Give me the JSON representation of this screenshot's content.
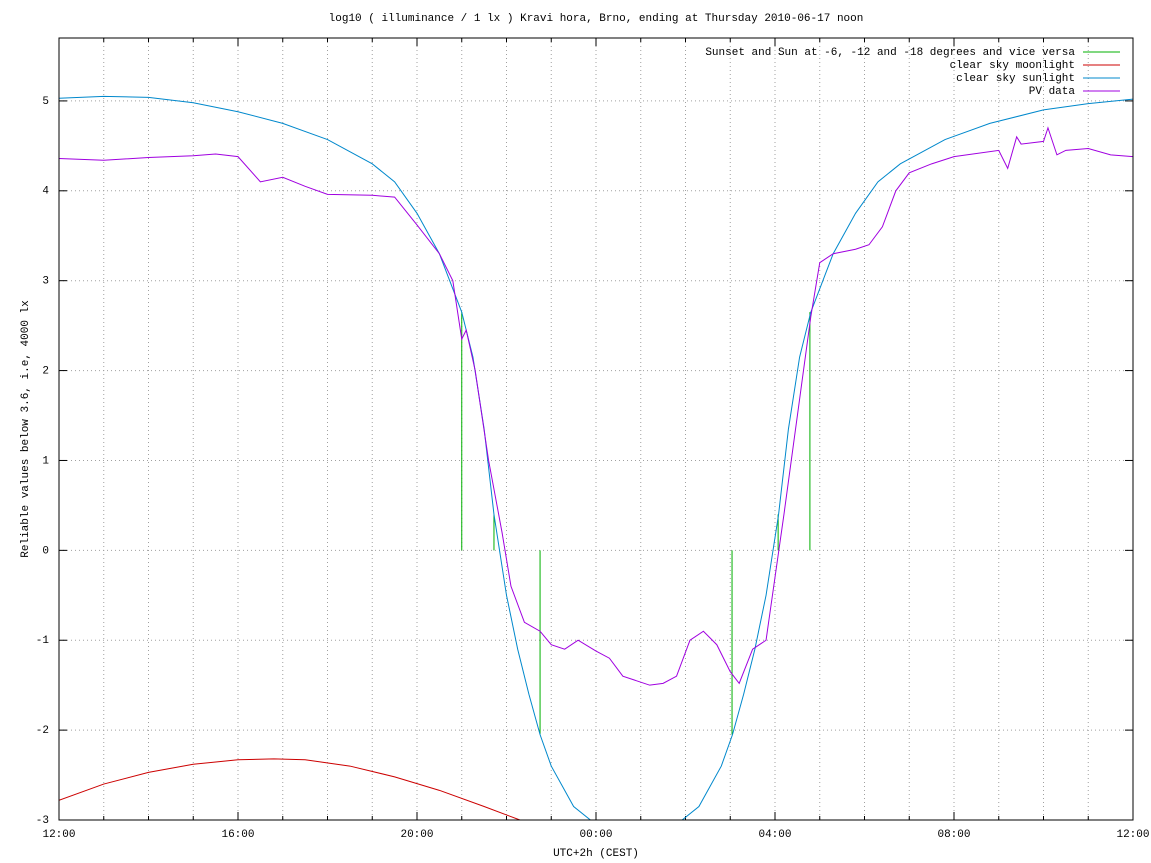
{
  "chart_data": {
    "type": "line",
    "title": "log10 ( illuminance / 1 lx ) Kravi hora, Brno, ending at Thursday 2010-06-17 noon",
    "xlabel": "UTC+2h (CEST)",
    "ylabel": "Reliable values below 3.6, i.e, 4000 lx",
    "xlim": [
      0,
      24
    ],
    "ylim": [
      -3,
      5.7
    ],
    "xticks": [
      {
        "value": 0,
        "label": "12:00"
      },
      {
        "value": 4,
        "label": "16:00"
      },
      {
        "value": 8,
        "label": "20:00"
      },
      {
        "value": 12,
        "label": "00:00"
      },
      {
        "value": 16,
        "label": "04:00"
      },
      {
        "value": 20,
        "label": "08:00"
      },
      {
        "value": 24,
        "label": "12:00"
      }
    ],
    "xminorticks": [
      1,
      2,
      3,
      5,
      6,
      7,
      9,
      10,
      11,
      13,
      14,
      15,
      17,
      18,
      19,
      21,
      22,
      23
    ],
    "yticks": [
      -3,
      -2,
      -1,
      0,
      1,
      2,
      3,
      4,
      5
    ],
    "grid": true,
    "legend": "top-right",
    "series": [
      {
        "name": "Sunset and Sun at -6, -12 and -18 degrees and vice versa",
        "color": "#00b000",
        "x": [
          9.0,
          9.0,
          9.0,
          9.72,
          9.72,
          9.72,
          10.75,
          10.75,
          10.75,
          15.04,
          15.04,
          15.04,
          16.07,
          16.07,
          16.07,
          16.78,
          16.78
        ],
        "values": [
          0,
          2.65,
          null,
          0,
          0.4,
          null,
          0,
          -2.05,
          null,
          0,
          -2.05,
          null,
          0,
          0.4,
          null,
          0,
          2.65
        ]
      },
      {
        "name": "clear sky moonlight",
        "color": "#cc0000",
        "x": [
          0,
          1,
          2,
          3,
          4,
          4.8,
          5.5,
          6.5,
          7.5,
          8.5,
          9.5,
          10.3
        ],
        "values": [
          -2.78,
          -2.6,
          -2.47,
          -2.38,
          -2.33,
          -2.32,
          -2.33,
          -2.4,
          -2.52,
          -2.67,
          -2.85,
          -3.0
        ]
      },
      {
        "name": "clear sky sunlight",
        "color": "#0088cc",
        "x": [
          0,
          1,
          2,
          3,
          4,
          5,
          6,
          7,
          7.5,
          8,
          8.5,
          9,
          9.25,
          9.5,
          9.72,
          10,
          10.25,
          10.5,
          10.75,
          11,
          11.5,
          12,
          12.9,
          13.8,
          14.3,
          14.8,
          15.05,
          15.3,
          15.55,
          15.8,
          16.08,
          16.3,
          16.55,
          16.8,
          17.3,
          17.8,
          18.3,
          18.8,
          19.8,
          20.8,
          22,
          23,
          24
        ],
        "values": [
          5.03,
          5.05,
          5.04,
          4.98,
          4.88,
          4.75,
          4.57,
          4.3,
          4.1,
          3.75,
          3.3,
          2.65,
          2.15,
          1.35,
          0.4,
          -0.5,
          -1.1,
          -1.6,
          -2.05,
          -2.4,
          -2.85,
          -3.05,
          -3.25,
          -3.05,
          -2.85,
          -2.4,
          -2.05,
          -1.6,
          -1.1,
          -0.5,
          0.4,
          1.35,
          2.15,
          2.65,
          3.3,
          3.75,
          4.1,
          4.3,
          4.57,
          4.75,
          4.9,
          4.97,
          5.02
        ]
      },
      {
        "name": "PV data",
        "color": "#a000e0",
        "x": [
          0,
          1,
          2,
          3,
          3.5,
          4,
          4.5,
          5,
          5.5,
          6,
          7,
          7.5,
          8,
          8.5,
          8.8,
          9,
          9.1,
          9.3,
          9.6,
          9.9,
          10.1,
          10.4,
          10.75,
          11,
          11.3,
          11.6,
          12,
          12.3,
          12.6,
          12.9,
          13.2,
          13.5,
          13.8,
          14.1,
          14.4,
          14.7,
          15,
          15.2,
          15.5,
          15.8,
          16,
          16.2,
          16.5,
          16.8,
          17,
          17.3,
          17.8,
          18.1,
          18.4,
          18.7,
          19,
          19.5,
          20,
          21,
          21.2,
          21.4,
          21.5,
          22,
          22.1,
          22.3,
          22.5,
          23,
          23.5,
          24
        ],
        "values": [
          4.36,
          4.34,
          4.37,
          4.39,
          4.41,
          4.38,
          4.1,
          4.15,
          4.05,
          3.96,
          3.95,
          3.93,
          3.62,
          3.3,
          3.0,
          2.35,
          2.45,
          2.0,
          1.0,
          0.2,
          -0.4,
          -0.8,
          -0.9,
          -1.05,
          -1.1,
          -1.0,
          -1.12,
          -1.2,
          -1.4,
          -1.45,
          -1.5,
          -1.48,
          -1.4,
          -1.0,
          -0.9,
          -1.05,
          -1.35,
          -1.48,
          -1.1,
          -1.0,
          -0.3,
          0.4,
          1.5,
          2.6,
          3.2,
          3.3,
          3.35,
          3.4,
          3.6,
          4.0,
          4.2,
          4.3,
          4.38,
          4.45,
          4.25,
          4.6,
          4.52,
          4.55,
          4.7,
          4.4,
          4.45,
          4.47,
          4.4,
          4.38
        ]
      }
    ]
  }
}
